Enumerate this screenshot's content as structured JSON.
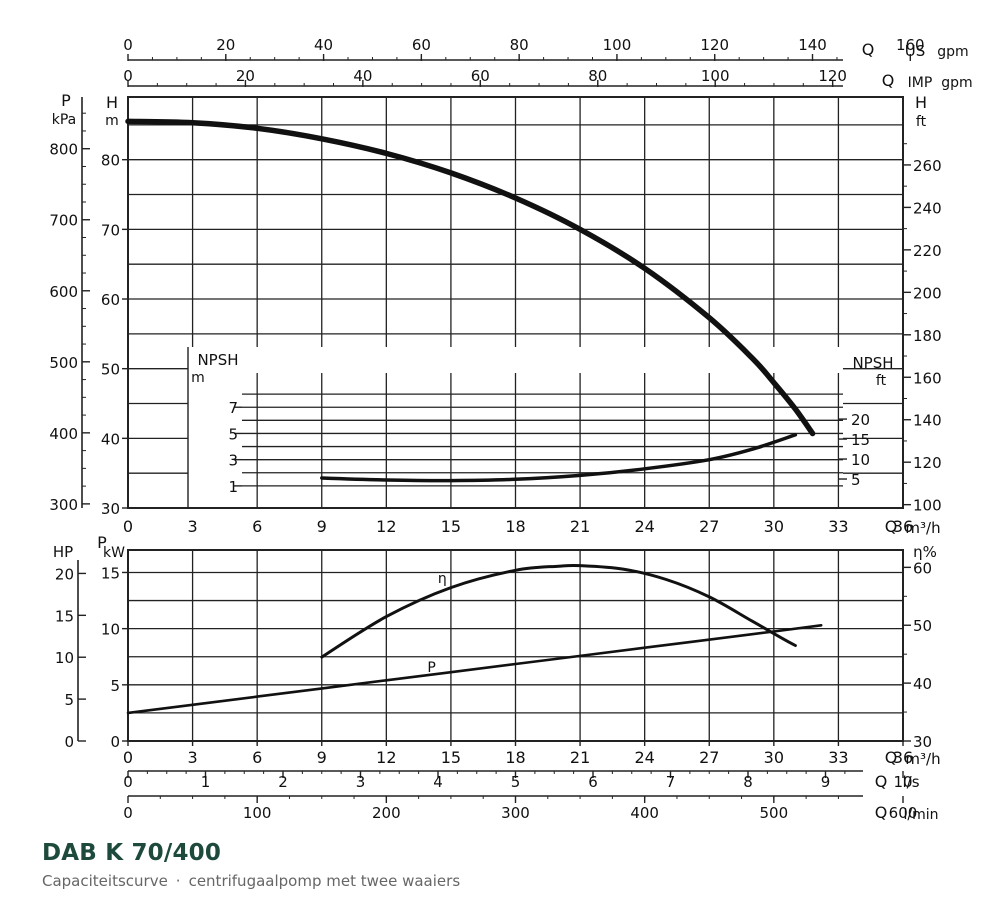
{
  "caption": {
    "title": "DAB K 70/400",
    "subtitle_left": "Capaciteitscurve",
    "separator": "·",
    "subtitle_right": "centrifugaalpomp met twee waaiers"
  },
  "colors": {
    "ink": "#111111",
    "grid": "#222222",
    "title": "#1d4a3c",
    "subtitle": "#666666"
  },
  "chart_data": [
    {
      "type": "line",
      "panel": "head-npsh",
      "x_axis": {
        "label": "Q m³/h",
        "ticks": [
          0,
          3,
          6,
          9,
          12,
          15,
          18,
          21,
          24,
          27,
          30,
          33,
          36
        ],
        "range": [
          0,
          36
        ]
      },
      "top_axes": [
        {
          "label": "Q US gpm",
          "unit_label": "gpm",
          "ticks": [
            0,
            20,
            40,
            60,
            80,
            100,
            120,
            140,
            160
          ],
          "m3h_per_unit": 0.22712
        },
        {
          "label": "Q IMP gpm",
          "unit_label": "gpm",
          "ticks": [
            0,
            20,
            40,
            60,
            80,
            100,
            120
          ],
          "m3h_per_unit": 0.27277
        }
      ],
      "y_axes": [
        {
          "label": "H",
          "unit": "m",
          "ticks": [
            30,
            40,
            50,
            60,
            70,
            80
          ],
          "range": [
            30,
            89
          ],
          "side": "left"
        },
        {
          "label": "P",
          "unit": "kPa",
          "ticks": [
            300,
            400,
            500,
            600,
            700,
            800
          ],
          "m_per_unit": 0.10197,
          "side": "left-outer"
        },
        {
          "label": "H",
          "unit": "ft",
          "ticks": [
            100,
            120,
            140,
            160,
            180,
            200,
            220,
            240,
            260
          ],
          "m_per_unit": 0.3048,
          "side": "right"
        }
      ],
      "npsh_axes": [
        {
          "label": "NPSH",
          "unit": "m",
          "ticks": [
            1,
            3,
            5,
            7
          ],
          "range": [
            0,
            9
          ],
          "side": "left"
        },
        {
          "label": "NPSH",
          "unit": "ft",
          "ticks": [
            5,
            10,
            15,
            20
          ],
          "m_per_unit": 0.3048,
          "side": "right"
        }
      ],
      "series": [
        {
          "key": "H",
          "axis": "H",
          "x": [
            0,
            3,
            6,
            9,
            12,
            15,
            18,
            21,
            24,
            27,
            29,
            30,
            31,
            31.8
          ],
          "y": [
            85.5,
            85.3,
            84.5,
            83.0,
            80.9,
            78.1,
            74.5,
            70.0,
            64.4,
            57.3,
            51.5,
            48.0,
            44.2,
            40.7
          ]
        },
        {
          "key": "NPSH",
          "axis": "NPSH",
          "x": [
            9,
            12,
            15,
            18,
            21,
            24,
            27,
            29,
            31
          ],
          "y": [
            1.6,
            1.45,
            1.4,
            1.5,
            1.8,
            2.3,
            3.0,
            3.8,
            4.9
          ]
        }
      ]
    },
    {
      "type": "line",
      "panel": "power-efficiency",
      "x_axis": {
        "label": "Q m³/h",
        "ticks": [
          0,
          3,
          6,
          9,
          12,
          15,
          18,
          21,
          24,
          27,
          30,
          33,
          36
        ],
        "range": [
          0,
          36
        ]
      },
      "bottom_axes": [
        {
          "label": "Q l/s",
          "unit_label": "l/s",
          "ticks": [
            0,
            1,
            2,
            3,
            4,
            5,
            6,
            7,
            8,
            9,
            10
          ],
          "m3h_per_unit": 3.6
        },
        {
          "label": "Q l/min",
          "unit_label": "l/min",
          "ticks": [
            0,
            100,
            200,
            300,
            400,
            500,
            600
          ],
          "m3h_per_unit": 0.06
        }
      ],
      "y_axes": [
        {
          "label": "P",
          "unit": "kW",
          "ticks": [
            0,
            5,
            10,
            15
          ],
          "range": [
            0,
            17
          ],
          "side": "left"
        },
        {
          "label": "HP",
          "unit": "",
          "ticks": [
            0,
            5,
            10,
            15,
            20
          ],
          "kw_per_unit": 0.7457,
          "side": "left-outer"
        },
        {
          "label": "η",
          "unit": "%",
          "ticks": [
            30,
            40,
            50,
            60
          ],
          "range": [
            30,
            63
          ],
          "side": "right"
        }
      ],
      "series": [
        {
          "key": "η",
          "name": "η",
          "axis": "η",
          "x": [
            9,
            12,
            15,
            18,
            20,
            21,
            23,
            25,
            27,
            29,
            30.5,
            31
          ],
          "y": [
            44.5,
            51.5,
            56.5,
            59.5,
            60.2,
            60.3,
            59.7,
            57.9,
            54.9,
            50.7,
            47.5,
            46.5
          ]
        },
        {
          "key": "P",
          "name": "P",
          "axis": "P",
          "x": [
            0,
            6,
            12,
            18,
            24,
            30,
            32.2
          ],
          "y": [
            2.5,
            3.95,
            5.4,
            6.85,
            8.3,
            9.75,
            10.3
          ]
        }
      ]
    }
  ]
}
